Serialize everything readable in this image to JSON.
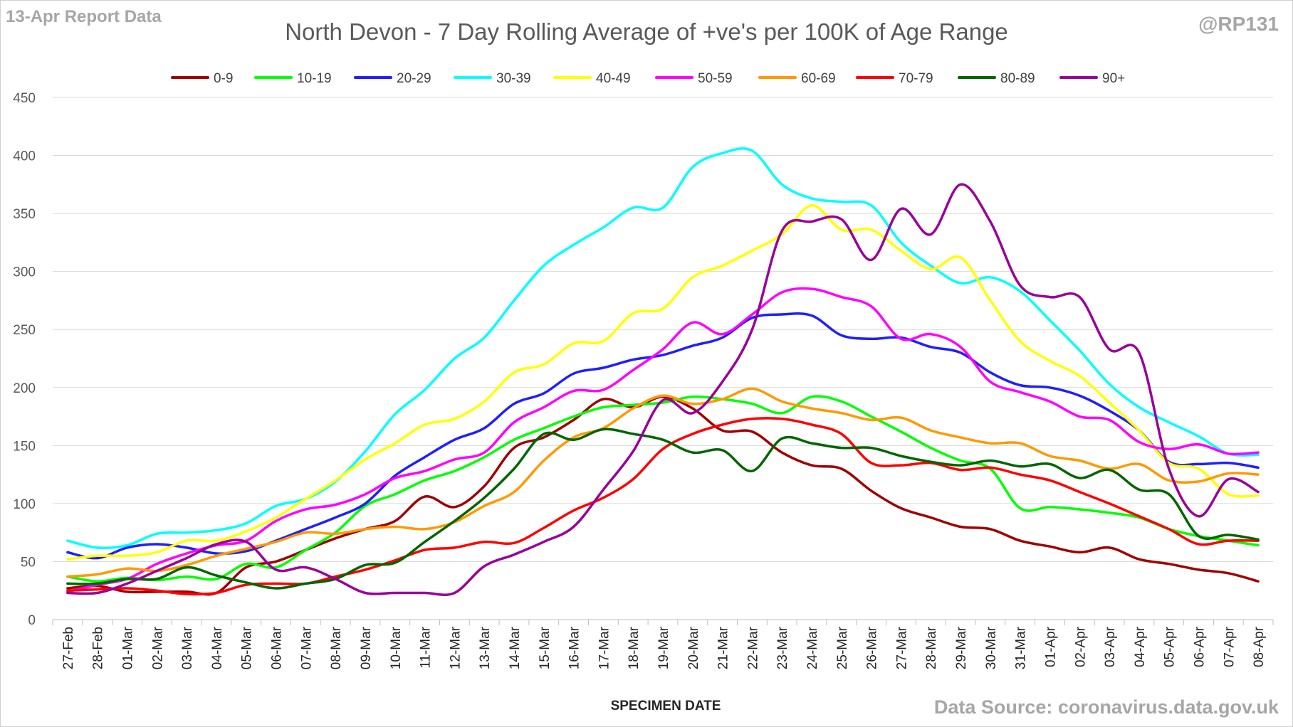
{
  "header": {
    "report_label": "13-Apr Report Data",
    "author": "@RP131"
  },
  "footer": {
    "source": "Data Source: coronavirus.data.gov.uk"
  },
  "chart_data": {
    "type": "line",
    "title": "North Devon - 7 Day Rolling Average of +ve's per 100K of Age Range",
    "xlabel": "SPECIMEN DATE",
    "ylabel": "",
    "ylim": [
      0,
      450
    ],
    "yticks": [
      0,
      50,
      100,
      150,
      200,
      250,
      300,
      350,
      400,
      450
    ],
    "grid": true,
    "legend_position": "top",
    "categories": [
      "27-Feb",
      "28-Feb",
      "01-Mar",
      "02-Mar",
      "03-Mar",
      "04-Mar",
      "05-Mar",
      "06-Mar",
      "07-Mar",
      "08-Mar",
      "09-Mar",
      "10-Mar",
      "11-Mar",
      "12-Mar",
      "13-Mar",
      "14-Mar",
      "15-Mar",
      "16-Mar",
      "17-Mar",
      "18-Mar",
      "19-Mar",
      "20-Mar",
      "21-Mar",
      "22-Mar",
      "23-Mar",
      "24-Mar",
      "25-Mar",
      "26-Mar",
      "27-Mar",
      "28-Mar",
      "29-Mar",
      "30-Mar",
      "31-Mar",
      "01-Apr",
      "02-Apr",
      "03-Apr",
      "04-Apr",
      "05-Apr",
      "06-Apr",
      "07-Apr",
      "08-Apr"
    ],
    "series": [
      {
        "name": "0-9",
        "color": "#a00000",
        "values": [
          27,
          29,
          24,
          24,
          24,
          23,
          45,
          50,
          60,
          70,
          78,
          85,
          106,
          97,
          115,
          148,
          157,
          172,
          190,
          183,
          192,
          182,
          163,
          162,
          144,
          133,
          130,
          111,
          96,
          88,
          80,
          78,
          68,
          63,
          58,
          62,
          52,
          48,
          43,
          40,
          33
        ]
      },
      {
        "name": "10-19",
        "color": "#00ff00",
        "values": [
          37,
          33,
          36,
          34,
          37,
          35,
          48,
          45,
          60,
          75,
          98,
          108,
          120,
          128,
          140,
          155,
          165,
          175,
          183,
          185,
          187,
          192,
          190,
          186,
          178,
          192,
          188,
          175,
          162,
          148,
          137,
          130,
          96,
          97,
          95,
          92,
          88,
          78,
          72,
          68,
          64
        ]
      },
      {
        "name": "20-29",
        "color": "#1f1fff",
        "values": [
          58,
          53,
          62,
          65,
          62,
          57,
          59,
          68,
          78,
          88,
          100,
          124,
          140,
          155,
          165,
          186,
          195,
          212,
          217,
          224,
          228,
          236,
          243,
          260,
          263,
          262,
          245,
          242,
          243,
          235,
          230,
          213,
          202,
          200,
          193,
          180,
          163,
          136,
          134,
          135,
          131
        ]
      },
      {
        "name": "30-39",
        "color": "#00ffff",
        "values": [
          68,
          62,
          64,
          74,
          75,
          77,
          83,
          98,
          104,
          119,
          145,
          177,
          198,
          225,
          243,
          275,
          305,
          323,
          338,
          355,
          355,
          390,
          402,
          404,
          375,
          363,
          360,
          357,
          325,
          305,
          290,
          295,
          283,
          258,
          232,
          203,
          183,
          170,
          158,
          143,
          142
        ]
      },
      {
        "name": "40-49",
        "color": "#ffff00",
        "values": [
          52,
          55,
          55,
          58,
          68,
          68,
          76,
          88,
          104,
          120,
          138,
          152,
          168,
          173,
          188,
          213,
          220,
          238,
          240,
          264,
          268,
          295,
          305,
          318,
          332,
          357,
          336,
          336,
          318,
          302,
          312,
          275,
          240,
          223,
          210,
          187,
          163,
          135,
          130,
          108,
          107
        ]
      },
      {
        "name": "50-59",
        "color": "#ff00ff",
        "values": [
          24,
          30,
          35,
          48,
          57,
          64,
          68,
          85,
          95,
          99,
          108,
          122,
          128,
          138,
          144,
          170,
          183,
          197,
          198,
          215,
          233,
          256,
          246,
          263,
          282,
          285,
          278,
          270,
          242,
          246,
          235,
          205,
          196,
          188,
          175,
          172,
          153,
          147,
          151,
          143,
          144
        ]
      },
      {
        "name": "60-69",
        "color": "#ff9900",
        "values": [
          37,
          39,
          44,
          42,
          47,
          55,
          61,
          67,
          75,
          74,
          78,
          80,
          78,
          84,
          98,
          110,
          137,
          157,
          165,
          182,
          193,
          186,
          190,
          199,
          188,
          182,
          178,
          172,
          174,
          163,
          157,
          152,
          152,
          141,
          137,
          130,
          134,
          120,
          119,
          126,
          125
        ]
      },
      {
        "name": "70-79",
        "color": "#ff0000",
        "values": [
          25,
          26,
          27,
          25,
          22,
          23,
          30,
          31,
          31,
          37,
          43,
          51,
          60,
          62,
          67,
          66,
          79,
          94,
          105,
          121,
          147,
          160,
          168,
          173,
          173,
          168,
          160,
          135,
          133,
          135,
          129,
          131,
          125,
          120,
          110,
          100,
          89,
          78,
          65,
          68,
          68
        ]
      },
      {
        "name": "80-89",
        "color": "#006600",
        "values": [
          31,
          31,
          35,
          35,
          45,
          38,
          32,
          27,
          31,
          35,
          47,
          49,
          67,
          85,
          105,
          130,
          160,
          155,
          164,
          160,
          155,
          144,
          146,
          128,
          156,
          152,
          148,
          148,
          141,
          136,
          133,
          137,
          132,
          134,
          122,
          129,
          112,
          108,
          72,
          73,
          69
        ]
      },
      {
        "name": "90+",
        "color": "#990099",
        "values": [
          23,
          23,
          31,
          42,
          53,
          65,
          67,
          43,
          45,
          35,
          23,
          23,
          23,
          23,
          46,
          56,
          67,
          80,
          112,
          145,
          189,
          178,
          205,
          250,
          335,
          343,
          345,
          310,
          354,
          332,
          375,
          343,
          288,
          278,
          278,
          233,
          230,
          130,
          89,
          121,
          110
        ]
      }
    ]
  }
}
